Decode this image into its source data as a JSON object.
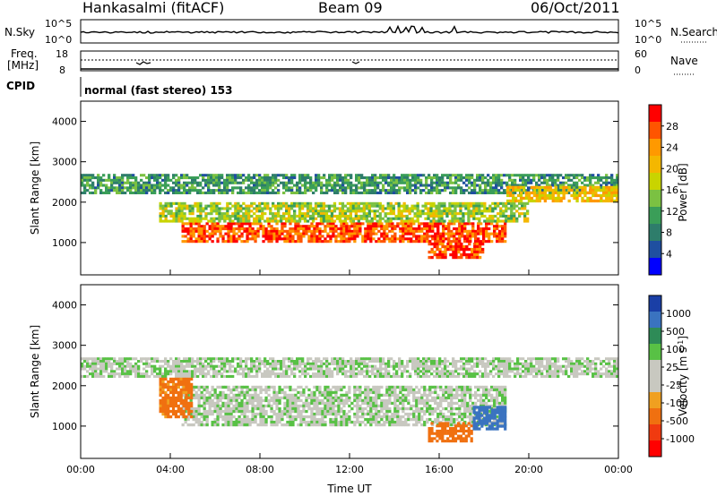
{
  "header": {
    "station": "Hankasalmi (fitACF)",
    "beam": "Beam 09",
    "date": "06/Oct/2011"
  },
  "noise_panel": {
    "left_label": "N.Sky",
    "right_label": "N.Search",
    "left_ticks": [
      "10^5",
      "10^0"
    ],
    "right_ticks": [
      "10^5",
      "10^0"
    ]
  },
  "freq_panel": {
    "left_label_line1": "Freq.",
    "left_label_line2": "[MHz]",
    "right_label": "Nave",
    "left_ticks": [
      "18",
      "8"
    ],
    "right_ticks": [
      "60",
      "0"
    ]
  },
  "cpid": {
    "label": "CPID",
    "mode": "normal (fast stereo) 153"
  },
  "power_colorbar": {
    "title": "Power [dB]",
    "ticks": [
      "28",
      "24",
      "20",
      "16",
      "12",
      "8",
      "4"
    ],
    "colors": [
      "#ff0000",
      "#ff5500",
      "#ff9900",
      "#f4b700",
      "#c9d400",
      "#7bc142",
      "#3a9e58",
      "#2e7d6b",
      "#1f4fa0",
      "#0000ff"
    ]
  },
  "velocity_colorbar": {
    "title": "Velocity [m s",
    "title_sup": "-1",
    "title_end": "]",
    "ticks": [
      "1000",
      "500",
      "100",
      "25",
      "-25",
      "-100",
      "-500",
      "-1000"
    ],
    "colors": [
      "#1a3fa6",
      "#3a73c0",
      "#2e8b57",
      "#58c145",
      "#c8c8c0",
      "#c8c8c0",
      "#f0a020",
      "#f07010",
      "#f03a10",
      "#ff0000"
    ]
  },
  "chart_data": [
    {
      "type": "heatmap",
      "name": "power",
      "ylabel": "Slant Range [km]",
      "y_ticks": [
        "1000",
        "2000",
        "3000",
        "4000"
      ],
      "ylim": [
        200,
        4500
      ],
      "xlim": [
        0,
        24
      ],
      "value_range_db": [
        0,
        30
      ],
      "bands": [
        {
          "t0": 4.5,
          "t1": 19.0,
          "r_low": 1000,
          "r_high": 1500,
          "value_db": 27
        },
        {
          "t0": 3.5,
          "t1": 20.0,
          "r_low": 1500,
          "r_high": 2000,
          "value_db": 15
        },
        {
          "t0": 0.0,
          "t1": 24.0,
          "r_low": 2200,
          "r_high": 2700,
          "value_db": 9
        },
        {
          "t0": 15.5,
          "t1": 18.0,
          "r_low": 600,
          "r_high": 1000,
          "value_db": 28
        },
        {
          "t0": 19.0,
          "t1": 24.0,
          "r_low": 2000,
          "r_high": 2400,
          "value_db": 20
        }
      ]
    },
    {
      "type": "heatmap",
      "name": "velocity",
      "ylabel": "Slant Range [km]",
      "y_ticks": [
        "1000",
        "2000",
        "3000",
        "4000"
      ],
      "ylim": [
        200,
        4500
      ],
      "xlim": [
        0,
        24
      ],
      "x_ticks": [
        "00:00",
        "04:00",
        "08:00",
        "12:00",
        "16:00",
        "20:00",
        "00:00"
      ],
      "xlabel": "Time UT",
      "bands": [
        {
          "t0": 4.5,
          "t1": 19.0,
          "r_low": 1000,
          "r_high": 2000,
          "value_ms": 0
        },
        {
          "t0": 0.0,
          "t1": 24.0,
          "r_low": 2200,
          "r_high": 2700,
          "value_ms": 0
        },
        {
          "t0": 3.5,
          "t1": 5.0,
          "r_low": 1200,
          "r_high": 2200,
          "value_ms": -250
        },
        {
          "t0": 15.5,
          "t1": 17.5,
          "r_low": 600,
          "r_high": 1100,
          "value_ms": -300
        },
        {
          "t0": 17.5,
          "t1": 19.0,
          "r_low": 900,
          "r_high": 1500,
          "value_ms": 400
        }
      ]
    }
  ]
}
